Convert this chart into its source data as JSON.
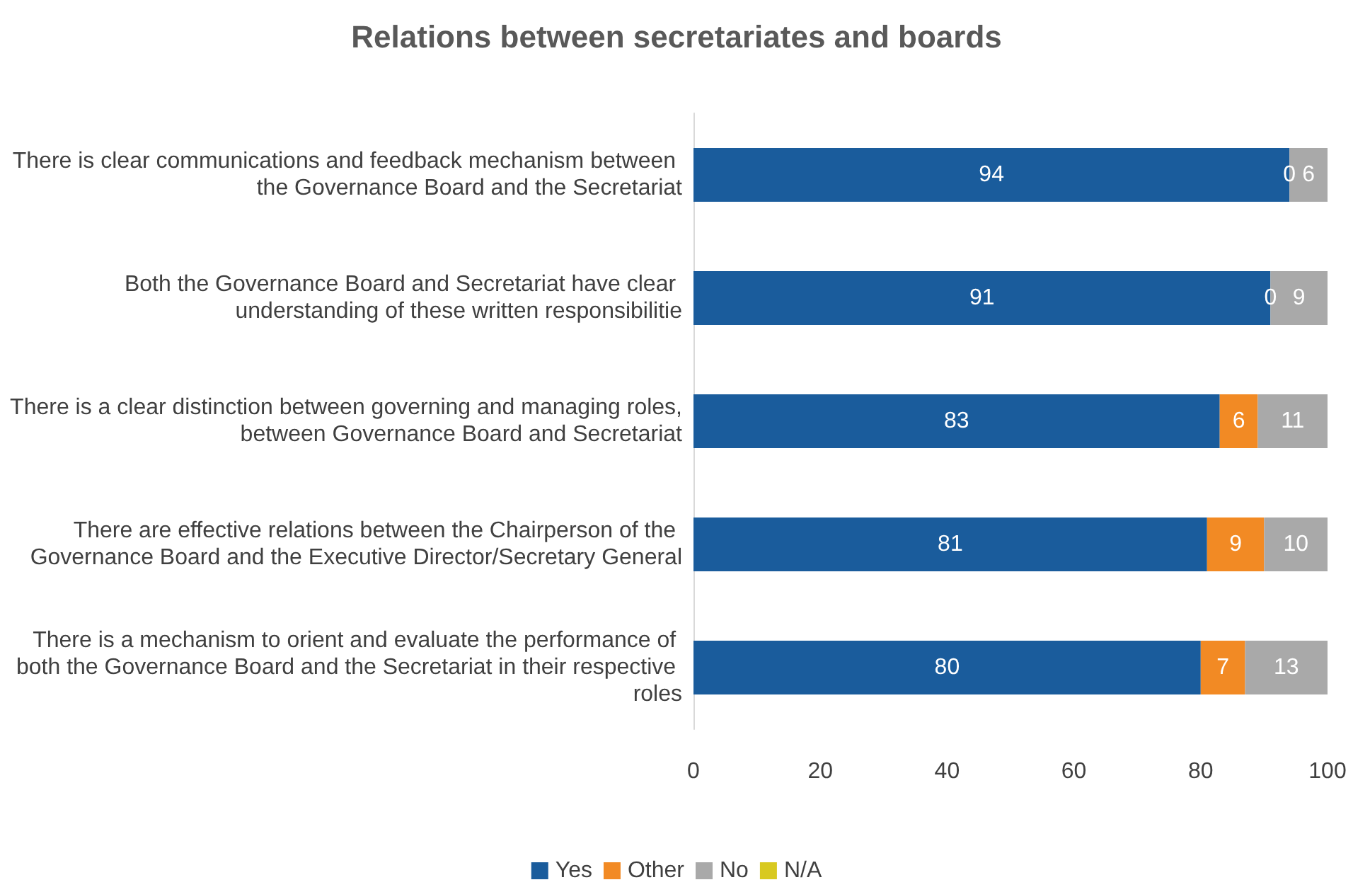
{
  "chart_data": {
    "type": "bar",
    "title": "Relations between secretariates and boards",
    "orientation": "horizontal",
    "stacked": true,
    "categories": [
      "There is clear communications and feedback mechanism between the Governance Board and the Secretariat",
      "Both the Governance Board and Secretariat have clear understanding of these written responsibilitie",
      "There is a clear distinction between governing and managing roles, between Governance Board and Secretariat",
      "There are effective relations between the Chairperson of the Governance Board and the Executive Director/Secretary General",
      "There is a mechanism to orient and evaluate the performance of both the Governance Board and the Secretariat in their respective roles"
    ],
    "series": [
      {
        "name": "Yes",
        "color": "#1a5c9c",
        "values": [
          94,
          91,
          83,
          81,
          80
        ],
        "value_labels": [
          "94",
          "91",
          "83",
          "81",
          "80"
        ]
      },
      {
        "name": "Other",
        "color": "#f28a24",
        "values": [
          0,
          0,
          6,
          9,
          7
        ],
        "value_labels": [
          "0",
          "0",
          "6",
          "9",
          "7"
        ]
      },
      {
        "name": "No",
        "color": "#a9a9a9",
        "values": [
          6,
          9,
          11,
          10,
          13
        ],
        "value_labels": [
          "6",
          "9",
          "11",
          "10",
          "13"
        ]
      },
      {
        "name": "N/A",
        "color": "#d8c920",
        "values": [
          0,
          0,
          0,
          0,
          0
        ],
        "value_labels": [
          null,
          null,
          null,
          null,
          null
        ]
      }
    ],
    "xlim": [
      0,
      100
    ],
    "xticks": [
      0,
      20,
      40,
      60,
      80,
      100
    ],
    "grid": false,
    "legend": "bottom"
  }
}
